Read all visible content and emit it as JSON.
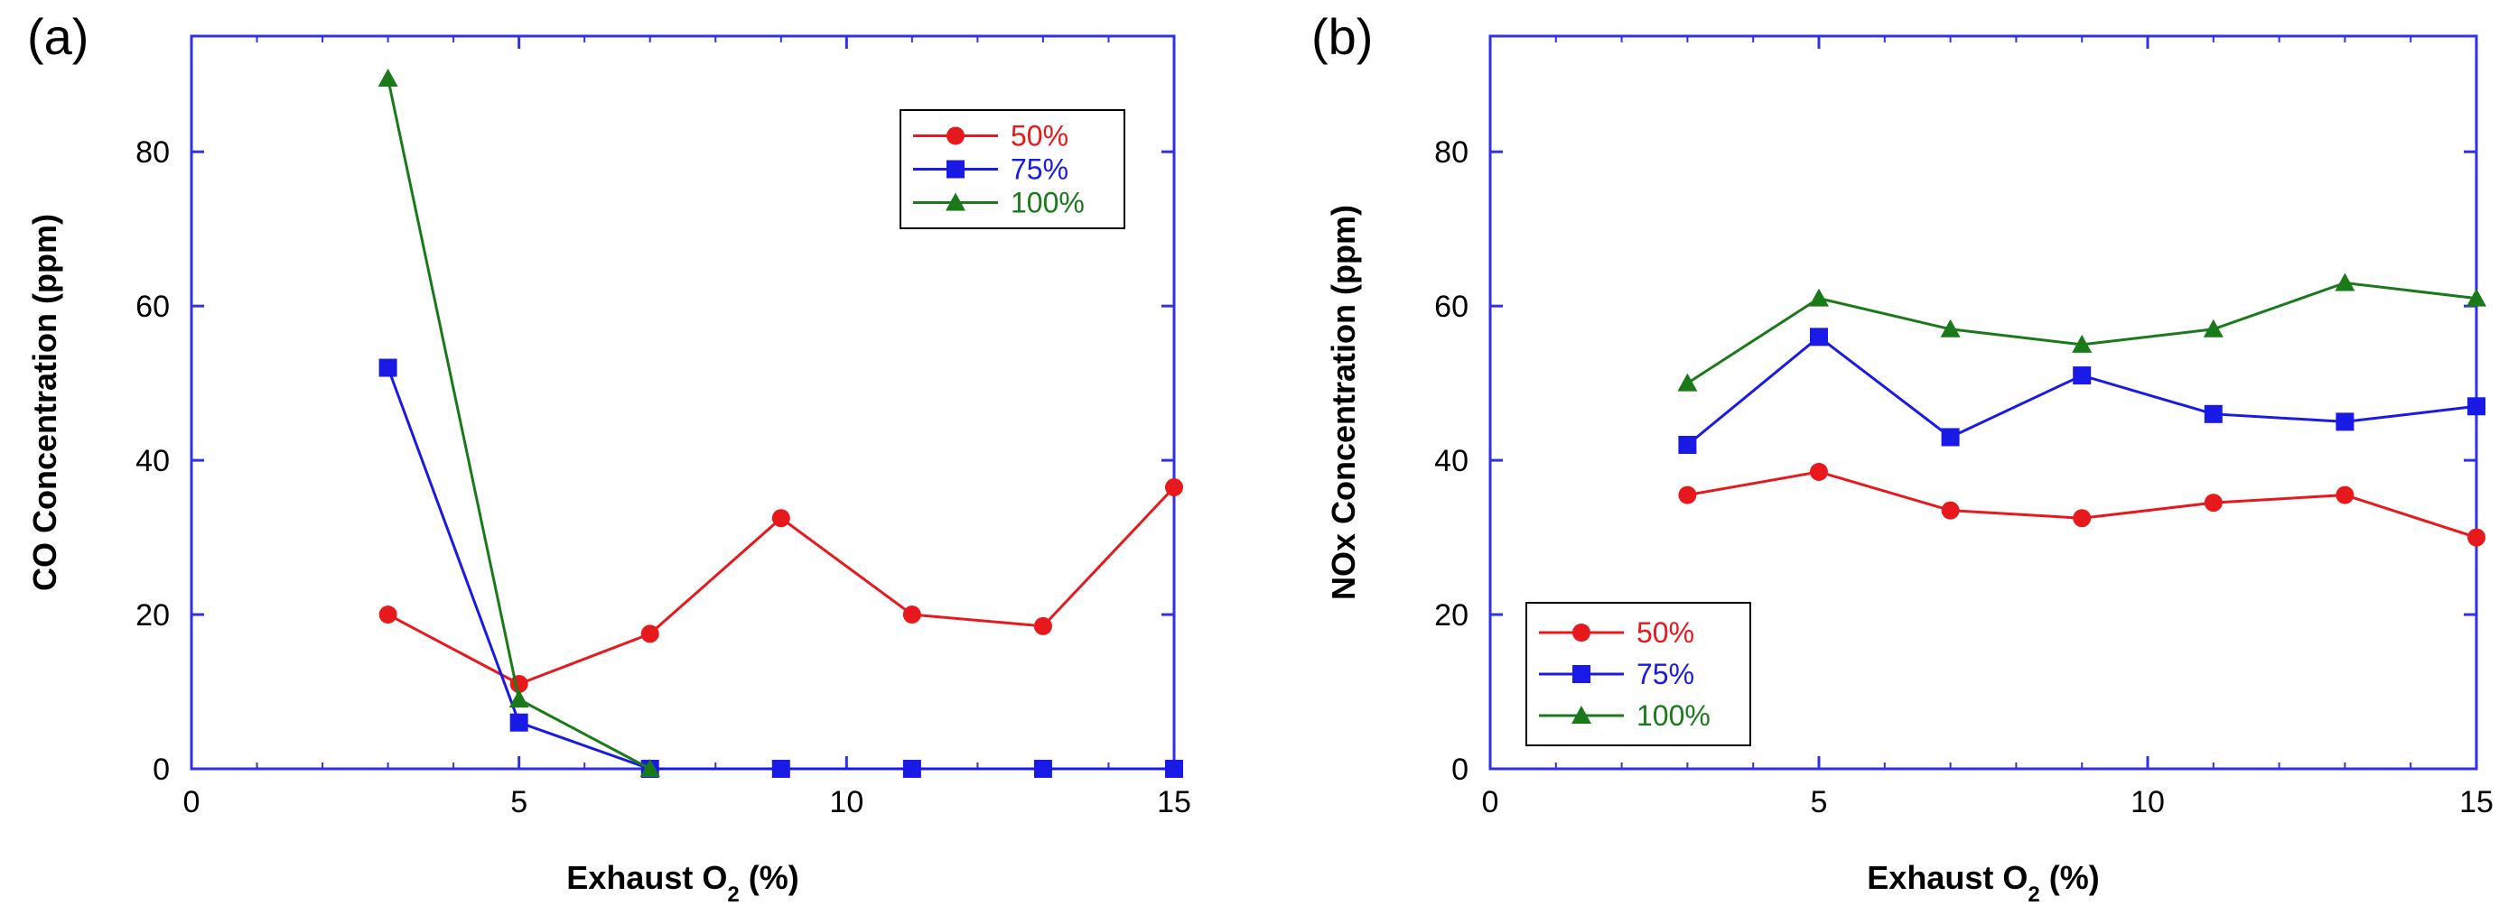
{
  "chart_data": [
    {
      "type": "line",
      "panel_label": "(a)",
      "xlabel_main": "Exhaust O",
      "xlabel_sub": "2",
      "xlabel_unit": " (%)",
      "ylabel": "CO Concentration (ppm)",
      "xlim": [
        0,
        15
      ],
      "ylim": [
        0,
        95
      ],
      "xticks": [
        0,
        5,
        10,
        15
      ],
      "yticks": [
        0,
        20,
        40,
        60,
        80
      ],
      "legend_position": "top-right",
      "grid": false,
      "series": [
        {
          "name": "50%",
          "color": "#e8191c",
          "marker": "circle",
          "x": [
            3,
            5,
            7,
            9,
            11,
            13,
            15
          ],
          "y": [
            20,
            11,
            17.5,
            32.5,
            20,
            18.5,
            36.5
          ]
        },
        {
          "name": "75%",
          "color": "#1a1ae6",
          "marker": "square",
          "x": [
            3,
            5,
            7,
            9,
            11,
            13,
            15
          ],
          "y": [
            52,
            6,
            0,
            0,
            0,
            0,
            0
          ]
        },
        {
          "name": "100%",
          "color": "#1a7a1a",
          "marker": "triangle",
          "x": [
            3,
            5,
            7
          ],
          "y": [
            89.5,
            9,
            0
          ]
        }
      ]
    },
    {
      "type": "line",
      "panel_label": "(b)",
      "xlabel_main": "Exhaust O",
      "xlabel_sub": "2",
      "xlabel_unit": " (%)",
      "ylabel": "NOx Concentration (ppm)",
      "xlim": [
        0,
        15
      ],
      "ylim": [
        0,
        95
      ],
      "xticks": [
        0,
        5,
        10,
        15
      ],
      "yticks": [
        0,
        20,
        40,
        60,
        80
      ],
      "legend_position": "bottom-left",
      "grid": false,
      "series": [
        {
          "name": "50%",
          "color": "#e8191c",
          "marker": "circle",
          "x": [
            3,
            5,
            7,
            9,
            11,
            13,
            15
          ],
          "y": [
            35.5,
            38.5,
            33.5,
            32.5,
            34.5,
            35.5,
            30
          ]
        },
        {
          "name": "75%",
          "color": "#1a1ae6",
          "marker": "square",
          "x": [
            3,
            5,
            7,
            9,
            11,
            13,
            15
          ],
          "y": [
            42,
            56,
            43,
            51,
            46,
            45,
            47
          ]
        },
        {
          "name": "100%",
          "color": "#1a7a1a",
          "marker": "triangle",
          "x": [
            3,
            5,
            7,
            9,
            11,
            13,
            15
          ],
          "y": [
            50,
            61,
            57,
            55,
            57,
            63,
            61
          ]
        }
      ]
    }
  ],
  "colors": {
    "axis_frame": "#3030e6"
  }
}
